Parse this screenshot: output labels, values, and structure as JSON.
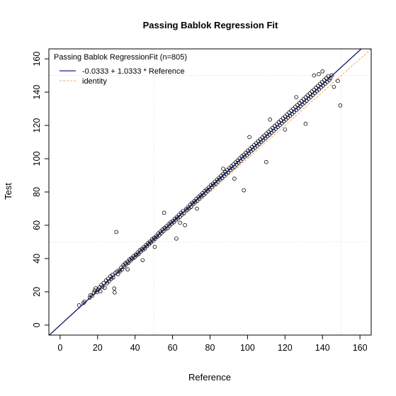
{
  "chart_data": {
    "type": "scatter",
    "title": "Passing Bablok Regression Fit",
    "xlabel": "Reference",
    "ylabel": "Test",
    "xlim": [
      -6,
      166
    ],
    "ylim": [
      -6,
      166
    ],
    "xticks": [
      0,
      20,
      40,
      60,
      80,
      100,
      120,
      140,
      160
    ],
    "yticks": [
      0,
      20,
      40,
      60,
      80,
      100,
      120,
      140,
      160
    ],
    "grid": true,
    "legend": {
      "placement": "top-left",
      "title": "Passing Bablok RegressionFit (n=805)",
      "entries": [
        {
          "label": "-0.0333 + 1.0333 * Reference",
          "color": "#1a237e",
          "style": "solid"
        },
        {
          "label": "identity",
          "color": "#f4a460",
          "style": "dashed"
        }
      ]
    },
    "fit": {
      "intercept": -0.0333,
      "slope": 1.0333,
      "color": "#1a237e"
    },
    "identity": {
      "intercept": 0,
      "slope": 1,
      "color": "#f4a460"
    },
    "n": 805,
    "points": [
      [
        10.1,
        11.9
      ],
      [
        12.5,
        13.3
      ],
      [
        13.0,
        14.1
      ],
      [
        15.8,
        16.5
      ],
      [
        16.2,
        18.0
      ],
      [
        17.1,
        17.6
      ],
      [
        18.0,
        19.5
      ],
      [
        18.4,
        20.8
      ],
      [
        19.0,
        22.1
      ],
      [
        19.6,
        19.8
      ],
      [
        20.3,
        21.4
      ],
      [
        21.0,
        22.6
      ],
      [
        21.5,
        20.3
      ],
      [
        22.0,
        24.1
      ],
      [
        22.6,
        23.0
      ],
      [
        23.2,
        25.3
      ],
      [
        23.8,
        22.4
      ],
      [
        24.5,
        26.8
      ],
      [
        25.0,
        25.2
      ],
      [
        25.6,
        27.9
      ],
      [
        26.1,
        26.4
      ],
      [
        26.8,
        29.3
      ],
      [
        27.3,
        27.8
      ],
      [
        27.9,
        30.2
      ],
      [
        28.3,
        28.6
      ],
      [
        28.9,
        22.0
      ],
      [
        29.1,
        19.6
      ],
      [
        29.6,
        31.4
      ],
      [
        30.0,
        56.0
      ],
      [
        30.4,
        32.2
      ],
      [
        30.9,
        30.6
      ],
      [
        31.5,
        33.0
      ],
      [
        32.0,
        32.4
      ],
      [
        32.6,
        34.6
      ],
      [
        33.1,
        33.4
      ],
      [
        33.7,
        36.0
      ],
      [
        34.2,
        35.1
      ],
      [
        34.8,
        37.2
      ],
      [
        35.3,
        36.6
      ],
      [
        35.9,
        38.1
      ],
      [
        36.4,
        37.4
      ],
      [
        37.0,
        39.5
      ],
      [
        37.5,
        38.8
      ],
      [
        38.1,
        40.2
      ],
      [
        38.6,
        39.9
      ],
      [
        39.2,
        41.5
      ],
      [
        39.7,
        40.6
      ],
      [
        40.3,
        42.4
      ],
      [
        40.8,
        41.9
      ],
      [
        41.4,
        43.6
      ],
      [
        41.9,
        42.7
      ],
      [
        42.5,
        45.0
      ],
      [
        43.0,
        44.1
      ],
      [
        43.6,
        45.8
      ],
      [
        44.1,
        45.2
      ],
      [
        44.7,
        46.9
      ],
      [
        45.2,
        46.0
      ],
      [
        45.8,
        48.1
      ],
      [
        46.3,
        47.4
      ],
      [
        46.9,
        49.3
      ],
      [
        47.4,
        48.6
      ],
      [
        48.0,
        50.2
      ],
      [
        48.5,
        49.7
      ],
      [
        49.1,
        51.6
      ],
      [
        49.6,
        50.8
      ],
      [
        50.2,
        52.5
      ],
      [
        50.7,
        51.9
      ],
      [
        51.3,
        53.6
      ],
      [
        51.8,
        53.0
      ],
      [
        52.4,
        55.1
      ],
      [
        52.9,
        54.0
      ],
      [
        53.5,
        56.2
      ],
      [
        54.0,
        55.3
      ],
      [
        54.6,
        57.4
      ],
      [
        55.1,
        56.4
      ],
      [
        55.7,
        58.5
      ],
      [
        56.2,
        57.9
      ],
      [
        56.8,
        59.4
      ],
      [
        57.3,
        58.2
      ],
      [
        57.9,
        60.6
      ],
      [
        58.4,
        59.7
      ],
      [
        59.0,
        61.8
      ],
      [
        59.5,
        60.9
      ],
      [
        60.1,
        62.7
      ],
      [
        60.6,
        61.8
      ],
      [
        61.2,
        63.9
      ],
      [
        61.7,
        63.1
      ],
      [
        62.3,
        65.0
      ],
      [
        62.8,
        64.2
      ],
      [
        63.4,
        66.3
      ],
      [
        63.9,
        65.1
      ],
      [
        64.5,
        67.5
      ],
      [
        65.0,
        66.4
      ],
      [
        65.6,
        68.5
      ],
      [
        66.1,
        67.2
      ],
      [
        66.6,
        60.1
      ],
      [
        67.2,
        69.7
      ],
      [
        67.7,
        69.1
      ],
      [
        68.3,
        71.0
      ],
      [
        68.8,
        70.2
      ],
      [
        69.4,
        72.4
      ],
      [
        69.9,
        71.0
      ],
      [
        70.5,
        73.5
      ],
      [
        71.0,
        72.8
      ],
      [
        71.6,
        74.6
      ],
      [
        72.1,
        73.9
      ],
      [
        72.7,
        75.9
      ],
      [
        73.2,
        74.7
      ],
      [
        73.8,
        77.0
      ],
      [
        74.3,
        76.1
      ],
      [
        74.9,
        78.1
      ],
      [
        75.4,
        77.3
      ],
      [
        76.0,
        79.3
      ],
      [
        76.5,
        78.2
      ],
      [
        77.1,
        80.5
      ],
      [
        77.6,
        79.4
      ],
      [
        78.2,
        81.6
      ],
      [
        78.7,
        80.7
      ],
      [
        79.3,
        82.7
      ],
      [
        79.8,
        81.6
      ],
      [
        80.4,
        84.0
      ],
      [
        80.9,
        82.9
      ],
      [
        81.5,
        85.0
      ],
      [
        82.0,
        84.1
      ],
      [
        82.6,
        86.2
      ],
      [
        83.1,
        85.0
      ],
      [
        83.7,
        87.4
      ],
      [
        84.2,
        86.3
      ],
      [
        84.8,
        88.5
      ],
      [
        85.3,
        87.6
      ],
      [
        85.9,
        89.7
      ],
      [
        86.4,
        88.4
      ],
      [
        87.0,
        90.9
      ],
      [
        87.5,
        89.7
      ],
      [
        88.1,
        92.0
      ],
      [
        88.6,
        90.8
      ],
      [
        89.2,
        93.2
      ],
      [
        89.7,
        91.8
      ],
      [
        90.3,
        94.3
      ],
      [
        90.8,
        93.1
      ],
      [
        91.4,
        95.4
      ],
      [
        91.9,
        94.2
      ],
      [
        92.5,
        96.6
      ],
      [
        93.0,
        95.1
      ],
      [
        93.6,
        97.8
      ],
      [
        94.1,
        96.5
      ],
      [
        94.7,
        98.9
      ],
      [
        95.2,
        97.6
      ],
      [
        95.8,
        100.1
      ],
      [
        96.3,
        98.7
      ],
      [
        96.9,
        101.3
      ],
      [
        97.4,
        100.0
      ],
      [
        98.0,
        102.4
      ],
      [
        98.5,
        101.1
      ],
      [
        99.1,
        103.6
      ],
      [
        99.6,
        102.0
      ],
      [
        100.2,
        104.7
      ],
      [
        100.7,
        103.3
      ],
      [
        101.3,
        105.9
      ],
      [
        101.8,
        104.4
      ],
      [
        102.4,
        107.0
      ],
      [
        102.9,
        105.5
      ],
      [
        103.5,
        108.2
      ],
      [
        104.0,
        106.6
      ],
      [
        104.6,
        109.3
      ],
      [
        105.1,
        107.8
      ],
      [
        105.7,
        110.5
      ],
      [
        106.2,
        108.9
      ],
      [
        106.8,
        111.6
      ],
      [
        107.3,
        110.0
      ],
      [
        107.9,
        112.8
      ],
      [
        108.4,
        111.1
      ],
      [
        109.0,
        113.9
      ],
      [
        109.5,
        112.2
      ],
      [
        110.1,
        115.1
      ],
      [
        110.6,
        113.4
      ],
      [
        111.2,
        116.2
      ],
      [
        111.7,
        114.5
      ],
      [
        112.3,
        117.4
      ],
      [
        112.8,
        115.6
      ],
      [
        113.4,
        118.5
      ],
      [
        113.9,
        116.8
      ],
      [
        114.5,
        119.7
      ],
      [
        115.0,
        117.9
      ],
      [
        115.6,
        120.8
      ],
      [
        116.1,
        119.0
      ],
      [
        116.7,
        122.0
      ],
      [
        117.2,
        120.1
      ],
      [
        117.8,
        123.1
      ],
      [
        118.3,
        121.3
      ],
      [
        118.9,
        124.3
      ],
      [
        119.4,
        122.4
      ],
      [
        120.0,
        125.4
      ],
      [
        120.5,
        123.5
      ],
      [
        121.1,
        126.6
      ],
      [
        121.6,
        124.7
      ],
      [
        122.2,
        127.7
      ],
      [
        122.7,
        125.8
      ],
      [
        123.3,
        128.9
      ],
      [
        123.8,
        126.9
      ],
      [
        124.4,
        130.0
      ],
      [
        124.9,
        128.1
      ],
      [
        125.5,
        131.2
      ],
      [
        126.0,
        129.2
      ],
      [
        126.6,
        132.3
      ],
      [
        127.1,
        130.3
      ],
      [
        127.7,
        133.5
      ],
      [
        128.2,
        131.4
      ],
      [
        128.8,
        134.6
      ],
      [
        129.3,
        132.6
      ],
      [
        129.9,
        135.8
      ],
      [
        130.4,
        133.7
      ],
      [
        131.0,
        136.9
      ],
      [
        131.5,
        134.8
      ],
      [
        132.1,
        138.1
      ],
      [
        132.6,
        136.0
      ],
      [
        133.2,
        139.2
      ],
      [
        133.7,
        137.1
      ],
      [
        134.3,
        140.4
      ],
      [
        134.8,
        138.2
      ],
      [
        135.4,
        141.5
      ],
      [
        135.9,
        139.4
      ],
      [
        136.5,
        142.7
      ],
      [
        137.0,
        140.5
      ],
      [
        137.6,
        143.8
      ],
      [
        138.1,
        141.6
      ],
      [
        138.7,
        145.0
      ],
      [
        139.2,
        142.8
      ],
      [
        139.8,
        146.1
      ],
      [
        140.3,
        143.9
      ],
      [
        140.9,
        147.3
      ],
      [
        141.4,
        145.0
      ],
      [
        142.0,
        148.4
      ],
      [
        142.5,
        146.2
      ],
      [
        143.1,
        149.6
      ],
      [
        143.6,
        147.3
      ],
      [
        144.2,
        148.4
      ],
      [
        145.0,
        150.1
      ],
      [
        146.1,
        143.2
      ],
      [
        148.2,
        146.7
      ],
      [
        149.5,
        132.0
      ],
      [
        131.0,
        121.0
      ],
      [
        98.0,
        81.0
      ],
      [
        120.0,
        117.5
      ],
      [
        110.0,
        98.0
      ],
      [
        55.5,
        67.5
      ],
      [
        62.0,
        52.0
      ],
      [
        44.0,
        39.0
      ],
      [
        73.0,
        70.0
      ],
      [
        87.0,
        94.0
      ],
      [
        101.0,
        113.0
      ],
      [
        126.0,
        137.0
      ],
      [
        135.5,
        150.0
      ],
      [
        138.0,
        150.8
      ],
      [
        140.0,
        152.5
      ],
      [
        112.0,
        123.5
      ],
      [
        93.0,
        88.0
      ],
      [
        64.0,
        61.5
      ],
      [
        50.5,
        47.0
      ],
      [
        36.0,
        33.5
      ]
    ]
  }
}
